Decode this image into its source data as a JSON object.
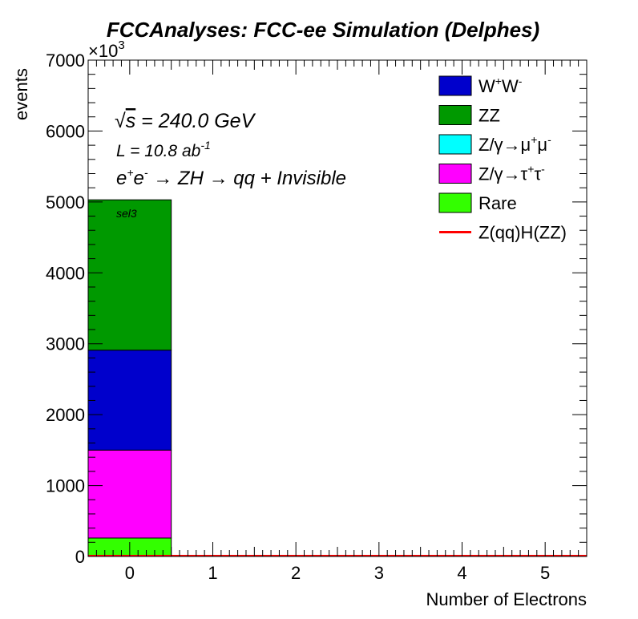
{
  "chart_data": {
    "type": "bar",
    "stacked": true,
    "title": "FCCAnalyses: FCC-ee Simulation (Delphes)",
    "xlabel": "Number of Electrons",
    "ylabel": "events",
    "y_multiplier_label": "×10",
    "y_multiplier_exp": "3",
    "xlim": [
      -0.5,
      5.5
    ],
    "ylim": [
      0,
      7000
    ],
    "x_ticks": [
      0,
      1,
      2,
      3,
      4,
      5
    ],
    "y_ticks": [
      0,
      1000,
      2000,
      3000,
      4000,
      5000,
      6000,
      7000
    ],
    "bins": [
      0,
      1,
      2,
      3,
      4,
      5
    ],
    "series": [
      {
        "name": "Rare",
        "color": "#33ff00",
        "values": [
          260,
          0,
          0,
          0,
          0,
          0
        ]
      },
      {
        "name": "Z/γ→τ⁺τ⁻",
        "color": "#ff00ff",
        "values": [
          1240,
          0,
          0,
          0,
          0,
          0
        ]
      },
      {
        "name": "Z/γ→μ⁺μ⁻",
        "color": "#00ffff",
        "values": [
          0,
          0,
          0,
          0,
          0,
          0
        ]
      },
      {
        "name": "W⁺W⁻",
        "color": "#0000cc",
        "values": [
          1410,
          0,
          0,
          0,
          0,
          0
        ]
      },
      {
        "name": "ZZ",
        "color": "#009900",
        "values": [
          2120,
          0,
          0,
          0,
          0,
          0
        ]
      },
      {
        "name": "Z(qq)H(ZZ)",
        "color": "#ff0000",
        "style": "line",
        "values": [
          0,
          0,
          0,
          0,
          0,
          0
        ]
      }
    ],
    "legend": {
      "position": "top-right",
      "entries": [
        {
          "series": "W⁺W⁻",
          "base": "W",
          "sup1": "+",
          "mid": "W",
          "sup2": "-",
          "color": "#0000cc",
          "kind": "box"
        },
        {
          "series": "ZZ",
          "base": "ZZ",
          "color": "#009900",
          "kind": "box"
        },
        {
          "series": "Z/γ→μ⁺μ⁻",
          "base": "Z/γ→μ",
          "sup1": "+",
          "mid": "μ",
          "sup2": "-",
          "color": "#00ffff",
          "kind": "box"
        },
        {
          "series": "Z/γ→τ⁺τ⁻",
          "base": "Z/γ→τ",
          "sup1": "+",
          "mid": "τ",
          "sup2": "-",
          "color": "#ff00ff",
          "kind": "box"
        },
        {
          "series": "Rare",
          "base": "Rare",
          "color": "#33ff00",
          "kind": "box"
        },
        {
          "series": "Z(qq)H(ZZ)",
          "base": "Z(qq)H(ZZ)",
          "color": "#ff0000",
          "kind": "line"
        }
      ]
    },
    "annotations": {
      "energy": {
        "sqrt": "√",
        "s": "s",
        "rest": " = 240.0 GeV"
      },
      "lumi": {
        "text": "L = 10.8 ab",
        "sup": "-1"
      },
      "process": {
        "e": "e",
        "plus": "+",
        "e2": "e",
        "minus": "-",
        "rest": " → ZH → qq + Invisible"
      },
      "selection": "sel3"
    }
  }
}
